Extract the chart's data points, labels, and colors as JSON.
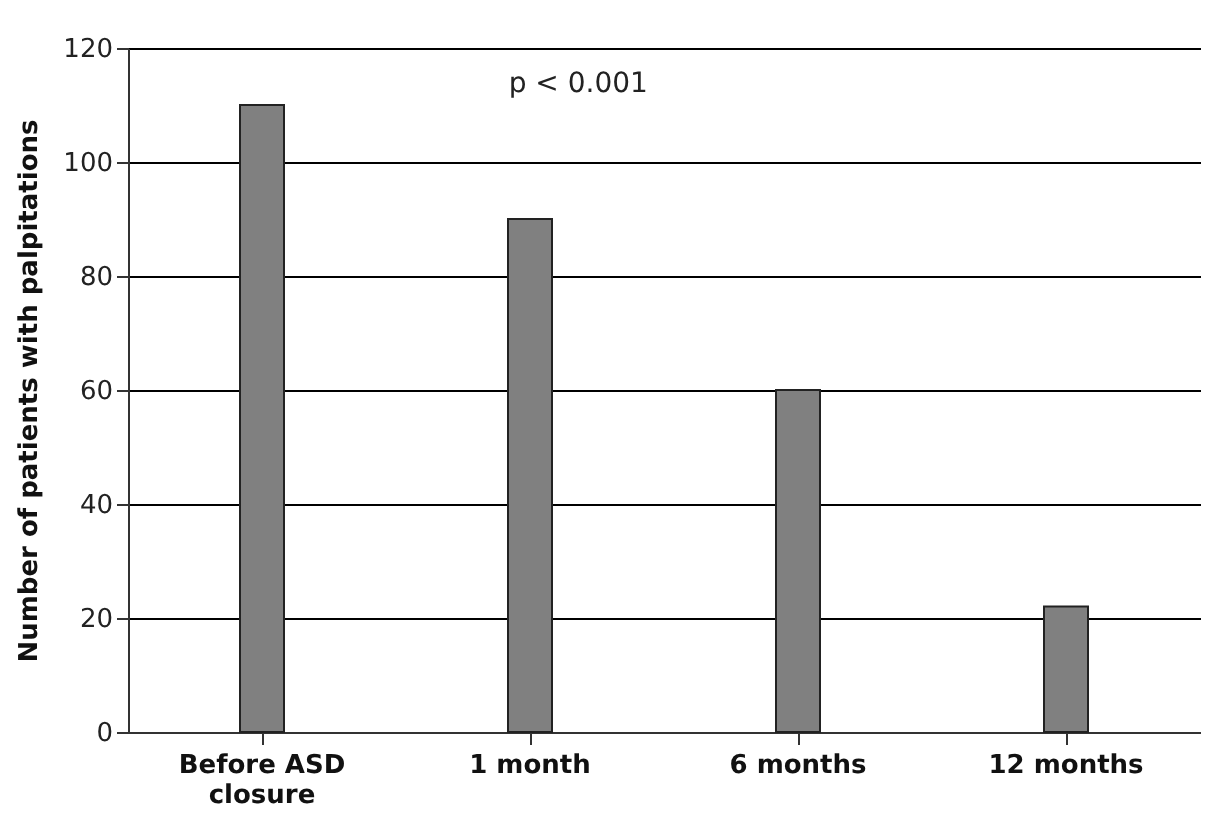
{
  "chart_data": {
    "type": "bar",
    "ylabel": "Number of patients with palpitations",
    "categories": [
      "Before ASD closure",
      "1 month",
      "6 months",
      "12 months"
    ],
    "values": [
      110,
      90,
      60,
      22
    ],
    "color": "#808080",
    "ylim": [
      0,
      120
    ],
    "yticks": [
      0,
      20,
      40,
      60,
      80,
      100,
      120
    ],
    "grid": "y",
    "annotations": [
      "p < 0.001"
    ]
  }
}
